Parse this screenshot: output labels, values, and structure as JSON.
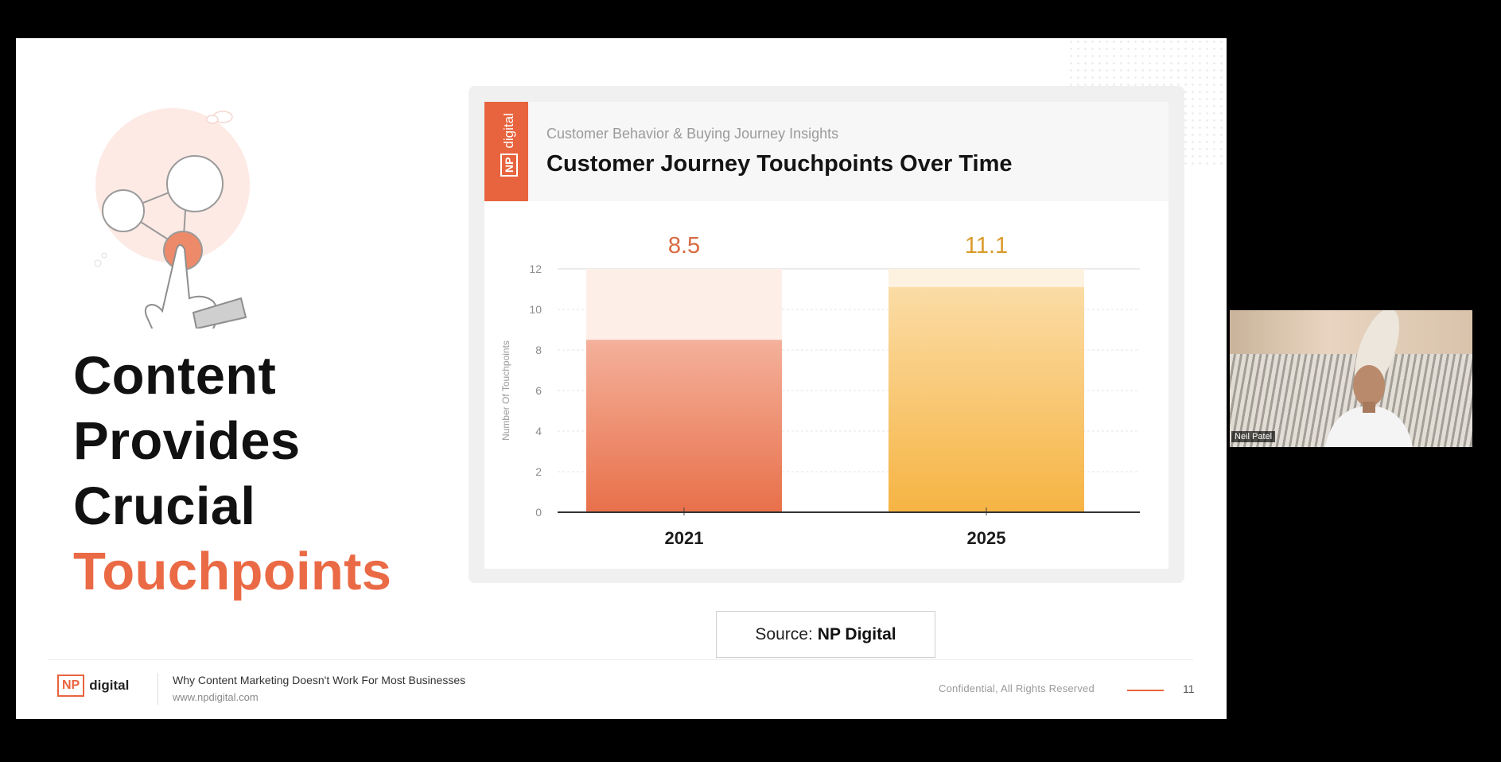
{
  "slide": {
    "headline": [
      "Content",
      "Provides",
      "Crucial"
    ],
    "headline_accent": "Touchpoints",
    "illustration_icon": "touch-network-icon"
  },
  "card": {
    "logo_np": "NP",
    "logo_digital": "digital",
    "subtitle": "Customer Behavior & Buying Journey Insights",
    "title": "Customer Journey Touchpoints Over Time"
  },
  "chart_data": {
    "type": "bar",
    "categories": [
      "2021",
      "2025"
    ],
    "values": [
      8.5,
      11.1
    ],
    "value_labels": [
      "8.5",
      "11.1"
    ],
    "ylabel": "Number Of Touchpoints",
    "ylim": [
      0,
      12
    ],
    "yticks": [
      "0",
      "2",
      "4",
      "6",
      "8",
      "10",
      "12"
    ],
    "grid": true,
    "colors": [
      "#e8704a",
      "#f6b443"
    ]
  },
  "source": {
    "label": "Source:",
    "value": "NP Digital"
  },
  "footer": {
    "logo_np": "NP",
    "logo_digital": "digital",
    "title": "Why Content Marketing Doesn't Work For Most Businesses",
    "url": "www.npdigital.com",
    "confidential": "Confidential, All Rights Reserved",
    "page": "11",
    "accent": "#e8643e"
  },
  "video": {
    "name": "Neil Patel"
  }
}
